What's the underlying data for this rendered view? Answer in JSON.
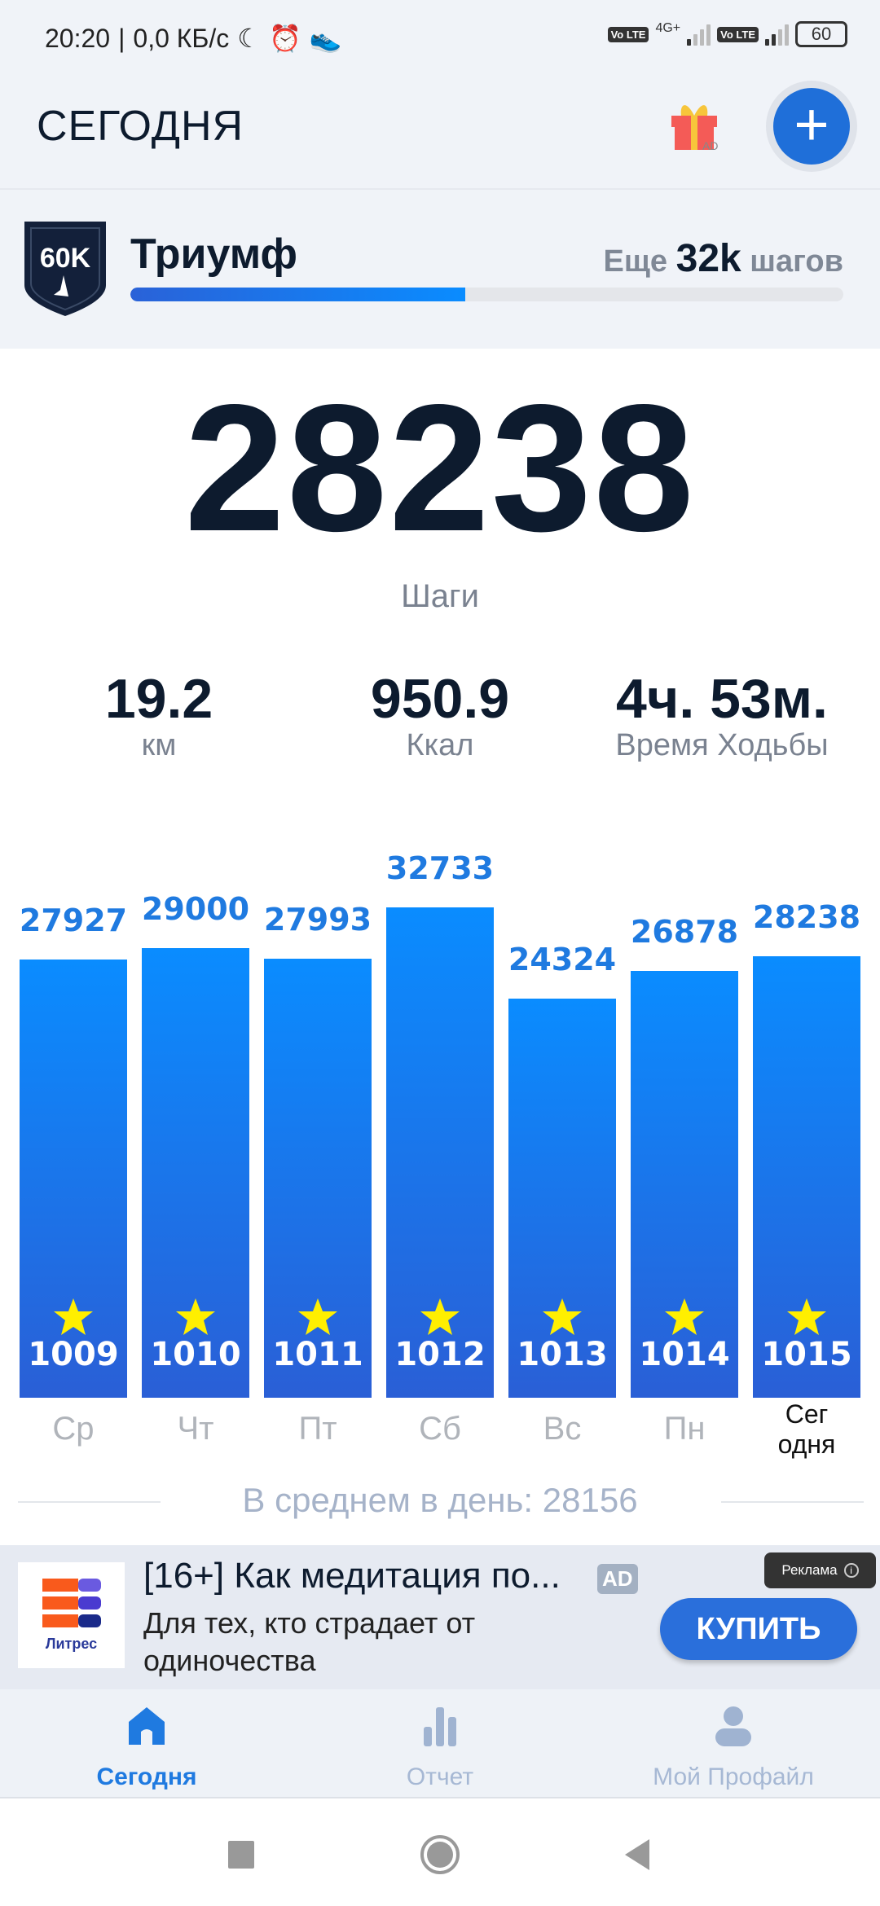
{
  "status_bar": {
    "time": "20:20",
    "network_speed": "0,0 КБ/с",
    "network_type": "4G+",
    "volte": "Vo LTE",
    "battery": "60"
  },
  "header": {
    "title": "СЕГОДНЯ",
    "gift_badge": "AD",
    "add_icon": "plus-icon"
  },
  "achievement": {
    "badge_text": "60K",
    "title": "Триумф",
    "remaining_prefix": "Еще",
    "remaining_value": "32k",
    "remaining_suffix": "шагов",
    "progress_percent": 47
  },
  "today": {
    "steps": "28238",
    "steps_label": "Шаги"
  },
  "stats": [
    {
      "value": "19.2",
      "label": "км"
    },
    {
      "value": "950.9",
      "label": "Ккал"
    },
    {
      "value": "4ч. 53м.",
      "label": "Время Ходьбы"
    }
  ],
  "chart_data": {
    "type": "bar",
    "categories": [
      "Ср",
      "Чт",
      "Пт",
      "Сб",
      "Вс",
      "Пн",
      "Сег одня"
    ],
    "values": [
      27927,
      29000,
      27993,
      32733,
      24324,
      26878,
      28238
    ],
    "day_numbers": [
      "1009",
      "1010",
      "1011",
      "1012",
      "1013",
      "1014",
      "1015"
    ],
    "bar_color_top": "#0a8cff",
    "bar_color_bottom": "#2a5fd6",
    "star_color": "#ffef00"
  },
  "chart_labels": {
    "values": [
      "27927",
      "29000",
      "27993",
      "32733",
      "24324",
      "26878",
      "28238"
    ],
    "today_line1": "Сег",
    "today_line2": "одня"
  },
  "average": {
    "text": "В среднем в день: 28156"
  },
  "ad": {
    "brand": "Литрес",
    "title": "[16+] Как медитация по...",
    "badge": "AD",
    "description": "Для тех, кто страдает от одиночества",
    "tag": "Реклама",
    "button": "КУПИТЬ"
  },
  "bottom_nav": [
    {
      "label": "Сегодня",
      "icon": "home-icon",
      "active": true
    },
    {
      "label": "Отчет",
      "icon": "bar-chart-icon"
    },
    {
      "label": "Мой Профайл",
      "icon": "profile-icon"
    }
  ],
  "colors": {
    "accent": "#1f6fd9",
    "text_dark": "#0d1b2e"
  }
}
